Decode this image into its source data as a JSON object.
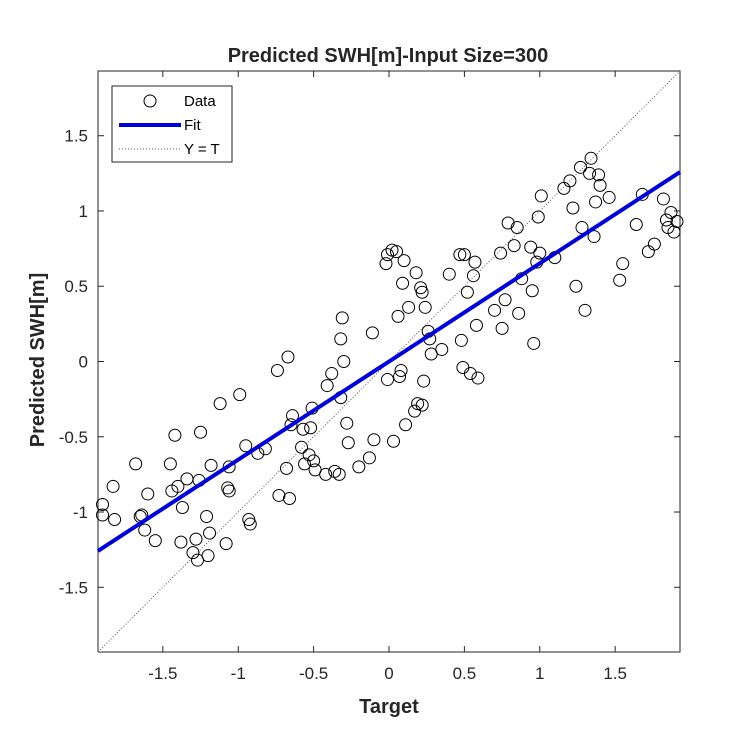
{
  "chart_data": {
    "type": "scatter",
    "title": "Predicted SWH[m]-Input Size=300",
    "xlabel": "Target",
    "ylabel": "Predicted SWH[m]",
    "xlim": [
      -1.93,
      1.93
    ],
    "ylim": [
      -1.93,
      1.93
    ],
    "xticks": [
      -1.5,
      -1,
      -0.5,
      0,
      0.5,
      1,
      1.5
    ],
    "yticks": [
      -1.5,
      -1,
      -0.5,
      0,
      0.5,
      1,
      1.5
    ],
    "xtick_labels": [
      "-1.5",
      "-1",
      "-0.5",
      "0",
      "0.5",
      "1",
      "1.5"
    ],
    "ytick_labels": [
      "-1.5",
      "-1",
      "-0.5",
      "0",
      "0.5",
      "1",
      "1.5"
    ],
    "grid": false,
    "legend_position": "top-left",
    "legend": [
      "Data",
      "Fit",
      "Y = T"
    ],
    "colors": {
      "data": "#000000",
      "fit": "#0000d9",
      "identity": "#555555",
      "text": "#262626"
    },
    "fit": {
      "slope": 0.652,
      "intercept": 0.0
    },
    "series": [
      {
        "name": "Data",
        "points": [
          [
            -1.9,
            -0.95
          ],
          [
            -1.9,
            -1.02
          ],
          [
            -1.83,
            -0.83
          ],
          [
            -1.82,
            -1.05
          ],
          [
            -1.68,
            -0.68
          ],
          [
            -1.65,
            -1.03
          ],
          [
            -1.64,
            -1.02
          ],
          [
            -1.62,
            -1.12
          ],
          [
            -1.6,
            -0.88
          ],
          [
            -1.55,
            -1.19
          ],
          [
            -1.45,
            -0.68
          ],
          [
            -1.44,
            -0.86
          ],
          [
            -1.42,
            -0.49
          ],
          [
            -1.4,
            -0.83
          ],
          [
            -1.38,
            -1.2
          ],
          [
            -1.37,
            -0.97
          ],
          [
            -1.34,
            -0.78
          ],
          [
            -1.3,
            -1.27
          ],
          [
            -1.28,
            -1.18
          ],
          [
            -1.27,
            -1.32
          ],
          [
            -1.26,
            -0.79
          ],
          [
            -1.25,
            -0.47
          ],
          [
            -1.21,
            -1.03
          ],
          [
            -1.2,
            -1.29
          ],
          [
            -1.19,
            -1.14
          ],
          [
            -1.18,
            -0.69
          ],
          [
            -1.12,
            -0.28
          ],
          [
            -1.08,
            -1.21
          ],
          [
            -1.07,
            -0.84
          ],
          [
            -1.06,
            -0.86
          ],
          [
            -1.06,
            -0.7
          ],
          [
            -0.99,
            -0.22
          ],
          [
            -0.95,
            -0.56
          ],
          [
            -0.93,
            -1.05
          ],
          [
            -0.92,
            -1.08
          ],
          [
            -0.87,
            -0.61
          ],
          [
            -0.82,
            -0.58
          ],
          [
            -0.74,
            -0.06
          ],
          [
            -0.73,
            -0.89
          ],
          [
            -0.68,
            -0.71
          ],
          [
            -0.67,
            0.03
          ],
          [
            -0.66,
            -0.91
          ],
          [
            -0.65,
            -0.42
          ],
          [
            -0.64,
            -0.36
          ],
          [
            -0.58,
            -0.57
          ],
          [
            -0.57,
            -0.45
          ],
          [
            -0.56,
            -0.68
          ],
          [
            -0.53,
            -0.62
          ],
          [
            -0.52,
            -0.44
          ],
          [
            -0.51,
            -0.31
          ],
          [
            -0.5,
            -0.66
          ],
          [
            -0.49,
            -0.72
          ],
          [
            -0.42,
            -0.75
          ],
          [
            -0.41,
            -0.16
          ],
          [
            -0.38,
            -0.08
          ],
          [
            -0.36,
            -0.73
          ],
          [
            -0.33,
            -0.75
          ],
          [
            -0.32,
            0.15
          ],
          [
            -0.32,
            -0.24
          ],
          [
            -0.31,
            0.29
          ],
          [
            -0.3,
            0.0
          ],
          [
            -0.28,
            -0.41
          ],
          [
            -0.27,
            -0.54
          ],
          [
            -0.2,
            -0.7
          ],
          [
            -0.13,
            -0.64
          ],
          [
            -0.11,
            0.19
          ],
          [
            -0.1,
            -0.52
          ],
          [
            -0.02,
            0.65
          ],
          [
            -0.01,
            0.71
          ],
          [
            -0.01,
            -0.12
          ],
          [
            0.02,
            0.74
          ],
          [
            0.03,
            -0.53
          ],
          [
            0.05,
            0.73
          ],
          [
            0.06,
            0.3
          ],
          [
            0.07,
            -0.1
          ],
          [
            0.08,
            -0.06
          ],
          [
            0.09,
            0.52
          ],
          [
            0.1,
            0.67
          ],
          [
            0.11,
            -0.42
          ],
          [
            0.13,
            0.36
          ],
          [
            0.17,
            -0.33
          ],
          [
            0.18,
            0.59
          ],
          [
            0.19,
            -0.28
          ],
          [
            0.21,
            0.49
          ],
          [
            0.22,
            0.46
          ],
          [
            0.22,
            -0.29
          ],
          [
            0.23,
            -0.13
          ],
          [
            0.24,
            0.36
          ],
          [
            0.26,
            0.2
          ],
          [
            0.27,
            0.15
          ],
          [
            0.28,
            0.05
          ],
          [
            0.35,
            0.08
          ],
          [
            0.4,
            0.58
          ],
          [
            0.47,
            0.71
          ],
          [
            0.48,
            0.14
          ],
          [
            0.49,
            -0.04
          ],
          [
            0.5,
            0.71
          ],
          [
            0.52,
            0.46
          ],
          [
            0.54,
            -0.08
          ],
          [
            0.56,
            0.57
          ],
          [
            0.57,
            0.66
          ],
          [
            0.58,
            0.24
          ],
          [
            0.59,
            -0.11
          ],
          [
            0.7,
            0.34
          ],
          [
            0.74,
            0.72
          ],
          [
            0.75,
            0.22
          ],
          [
            0.77,
            0.41
          ],
          [
            0.79,
            0.92
          ],
          [
            0.83,
            0.77
          ],
          [
            0.85,
            0.89
          ],
          [
            0.86,
            0.32
          ],
          [
            0.88,
            0.55
          ],
          [
            0.94,
            0.76
          ],
          [
            0.95,
            0.47
          ],
          [
            0.96,
            0.12
          ],
          [
            0.98,
            0.66
          ],
          [
            0.99,
            0.96
          ],
          [
            1.0,
            0.72
          ],
          [
            1.01,
            1.1
          ],
          [
            1.1,
            0.69
          ],
          [
            1.16,
            1.15
          ],
          [
            1.2,
            1.2
          ],
          [
            1.22,
            1.02
          ],
          [
            1.24,
            0.5
          ],
          [
            1.27,
            1.29
          ],
          [
            1.28,
            0.89
          ],
          [
            1.3,
            0.34
          ],
          [
            1.33,
            1.25
          ],
          [
            1.34,
            1.35
          ],
          [
            1.36,
            0.83
          ],
          [
            1.37,
            1.06
          ],
          [
            1.39,
            1.24
          ],
          [
            1.4,
            1.17
          ],
          [
            1.46,
            1.09
          ],
          [
            1.53,
            0.54
          ],
          [
            1.55,
            0.65
          ],
          [
            1.64,
            0.91
          ],
          [
            1.68,
            1.11
          ],
          [
            1.72,
            0.73
          ],
          [
            1.76,
            0.78
          ],
          [
            1.82,
            1.08
          ],
          [
            1.84,
            0.94
          ],
          [
            1.85,
            0.89
          ],
          [
            1.87,
            0.99
          ],
          [
            1.89,
            0.86
          ],
          [
            1.91,
            0.93
          ]
        ]
      }
    ]
  }
}
